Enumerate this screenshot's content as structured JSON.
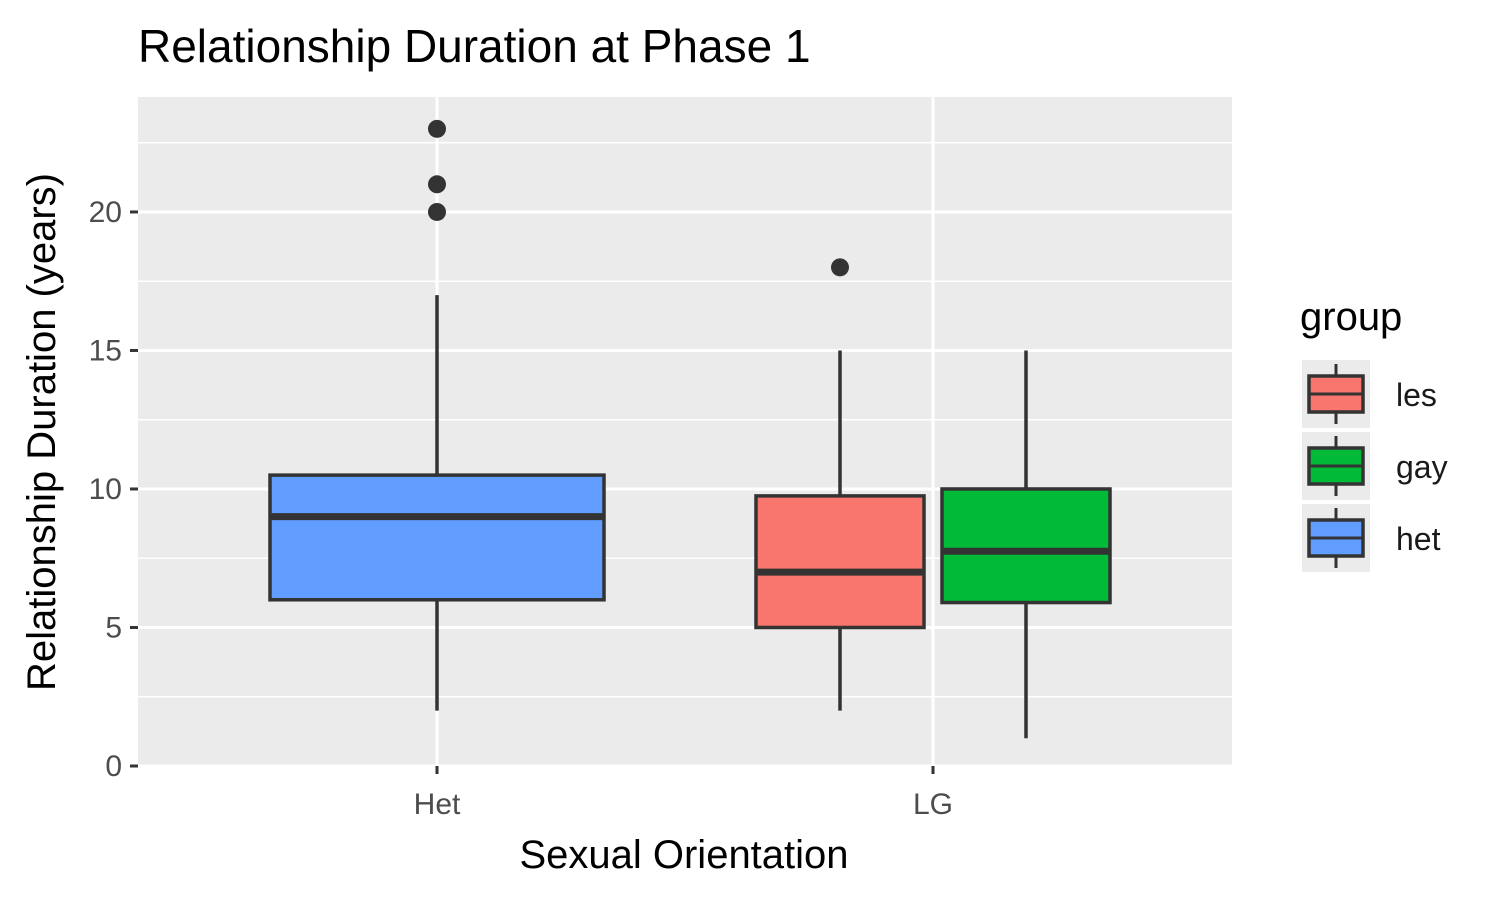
{
  "chart_data": {
    "type": "box",
    "title": "Relationship Duration at Phase 1",
    "xlabel": "Sexual Orientation",
    "ylabel": "Relationship Duration (years)",
    "ylim": [
      0,
      24
    ],
    "y_ticks": [
      0,
      5,
      10,
      15,
      20
    ],
    "y_tick_labels": [
      "0",
      "5",
      "10",
      "15",
      "20"
    ],
    "categories": [
      "Het",
      "LG"
    ],
    "grid": true,
    "legend_position": "right",
    "legend_title": "group",
    "groups": [
      {
        "name": "les",
        "color": "#F8766D"
      },
      {
        "name": "gay",
        "color": "#00BA38"
      },
      {
        "name": "het",
        "color": "#619CFF"
      }
    ],
    "boxes": [
      {
        "category": "Het",
        "group": "het",
        "whisker_low": 2,
        "q1": 6,
        "median": 9,
        "q3": 10.5,
        "whisker_high": 17,
        "outliers": [
          20,
          21,
          23
        ]
      },
      {
        "category": "LG",
        "group": "les",
        "whisker_low": 2,
        "q1": 5,
        "median": 7,
        "q3": 9.75,
        "whisker_high": 15,
        "outliers": [
          18
        ]
      },
      {
        "category": "LG",
        "group": "gay",
        "whisker_low": 1,
        "q1": 5.9,
        "median": 7.75,
        "q3": 10,
        "whisker_high": 15,
        "outliers": []
      }
    ]
  }
}
